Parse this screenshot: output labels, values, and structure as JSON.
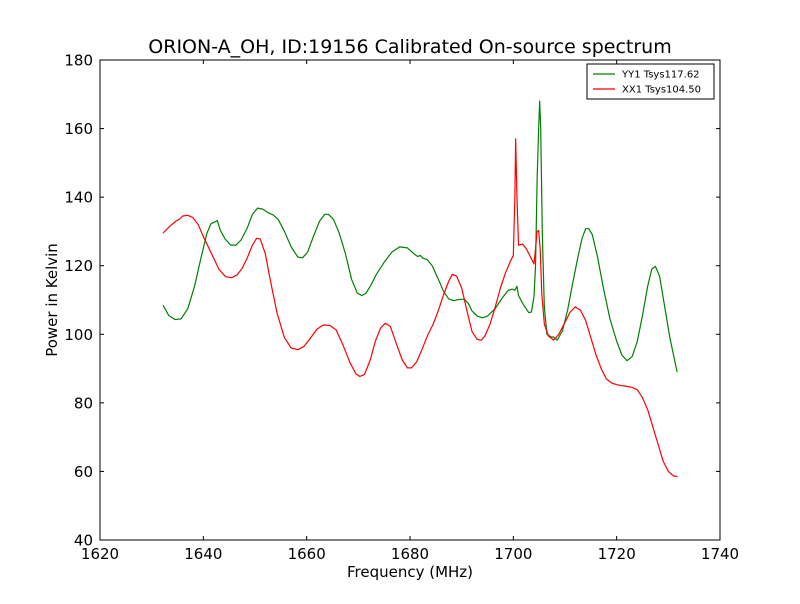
{
  "chart_data": {
    "type": "line",
    "title": "ORION-A_OH, ID:19156 Calibrated On-source spectrum",
    "xlabel": "Frequency (MHz)",
    "ylabel": "Power in Kelvin",
    "xlim": [
      1620,
      1740
    ],
    "ylim": [
      40,
      180
    ],
    "xticks": [
      1620,
      1640,
      1660,
      1680,
      1700,
      1720,
      1740
    ],
    "yticks": [
      40,
      60,
      80,
      100,
      120,
      140,
      160,
      180
    ],
    "grid": false,
    "legend": "top-right",
    "series": [
      {
        "name": "YY1 Tsys117.62",
        "color": "#008000",
        "points": [
          [
            1632.2,
            108.5
          ],
          [
            1633.3,
            105.5
          ],
          [
            1634.5,
            104.3
          ],
          [
            1635.7,
            104.5
          ],
          [
            1637,
            107.5
          ],
          [
            1638.3,
            114
          ],
          [
            1639.5,
            122
          ],
          [
            1640.7,
            129.5
          ],
          [
            1641.5,
            132.3
          ],
          [
            1642.3,
            132.8
          ],
          [
            1642.7,
            133.2
          ],
          [
            1643.3,
            130.3
          ],
          [
            1644.2,
            127.8
          ],
          [
            1645.3,
            126
          ],
          [
            1646.3,
            126
          ],
          [
            1647.3,
            127.5
          ],
          [
            1648.5,
            131
          ],
          [
            1649.5,
            135
          ],
          [
            1650.5,
            136.8
          ],
          [
            1651.5,
            136.5
          ],
          [
            1652.5,
            135.5
          ],
          [
            1653.5,
            134.8
          ],
          [
            1654.5,
            133.5
          ],
          [
            1655.7,
            130
          ],
          [
            1657,
            125.5
          ],
          [
            1658.3,
            122.5
          ],
          [
            1659.2,
            122.3
          ],
          [
            1660.2,
            124
          ],
          [
            1661.3,
            128.5
          ],
          [
            1662.5,
            133
          ],
          [
            1663.5,
            135
          ],
          [
            1664.2,
            135
          ],
          [
            1665.2,
            133.5
          ],
          [
            1666.3,
            129.5
          ],
          [
            1667.5,
            123.5
          ],
          [
            1668.7,
            116
          ],
          [
            1669.8,
            112
          ],
          [
            1670.7,
            111.3
          ],
          [
            1671.5,
            112
          ],
          [
            1672.5,
            114.5
          ],
          [
            1673.5,
            117.5
          ],
          [
            1675,
            121
          ],
          [
            1676.5,
            124
          ],
          [
            1678,
            125.5
          ],
          [
            1679.5,
            125.2
          ],
          [
            1681,
            123.2
          ],
          [
            1681.5,
            122.7
          ],
          [
            1682,
            123
          ],
          [
            1682.5,
            122.2
          ],
          [
            1683.3,
            121.8
          ],
          [
            1684.3,
            120
          ],
          [
            1685.5,
            116
          ],
          [
            1686.5,
            112.5
          ],
          [
            1687.5,
            110.3
          ],
          [
            1688.5,
            109.8
          ],
          [
            1689.5,
            110.2
          ],
          [
            1690.5,
            110.2
          ],
          [
            1691.3,
            109
          ],
          [
            1692,
            106.8
          ],
          [
            1693,
            105.3
          ],
          [
            1694,
            104.8
          ],
          [
            1695,
            105.3
          ],
          [
            1696.5,
            107.5
          ],
          [
            1697.8,
            110.5
          ],
          [
            1699,
            112.8
          ],
          [
            1699.8,
            113.2
          ],
          [
            1700.3,
            112.8
          ],
          [
            1700.7,
            114
          ],
          [
            1701,
            111.3
          ],
          [
            1702,
            108.5
          ],
          [
            1703,
            106.3
          ],
          [
            1703.5,
            106.5
          ],
          [
            1704,
            111
          ],
          [
            1704.3,
            120
          ],
          [
            1704.6,
            145
          ],
          [
            1704.9,
            160
          ],
          [
            1705.1,
            168
          ],
          [
            1705.3,
            160
          ],
          [
            1705.6,
            130
          ],
          [
            1706,
            108
          ],
          [
            1706.5,
            100
          ],
          [
            1707.3,
            99.2
          ],
          [
            1707.8,
            99.2
          ],
          [
            1708.5,
            98.3
          ],
          [
            1709.5,
            101
          ],
          [
            1710.5,
            107
          ],
          [
            1711.5,
            115
          ],
          [
            1712.5,
            122.5
          ],
          [
            1713.3,
            128
          ],
          [
            1714,
            130.8
          ],
          [
            1714.6,
            130.8
          ],
          [
            1715.3,
            129
          ],
          [
            1716.3,
            122.5
          ],
          [
            1717.5,
            113
          ],
          [
            1718.7,
            104.5
          ],
          [
            1720,
            98
          ],
          [
            1721,
            94
          ],
          [
            1722,
            92.3
          ],
          [
            1723,
            93.5
          ],
          [
            1724,
            98
          ],
          [
            1725,
            105.5
          ],
          [
            1726,
            114
          ],
          [
            1726.8,
            119
          ],
          [
            1727.5,
            119.8
          ],
          [
            1728.3,
            117
          ],
          [
            1729.3,
            108
          ],
          [
            1730.3,
            99
          ],
          [
            1731,
            94
          ],
          [
            1731.7,
            89
          ]
        ]
      },
      {
        "name": "XX1 Tsys104.50",
        "color": "#ff0000",
        "points": [
          [
            1632.2,
            129.5
          ],
          [
            1633.5,
            131.5
          ],
          [
            1634.7,
            133
          ],
          [
            1635.5,
            133.7
          ],
          [
            1636,
            134.5
          ],
          [
            1637,
            134.7
          ],
          [
            1638,
            134
          ],
          [
            1639,
            132
          ],
          [
            1640,
            128.5
          ],
          [
            1641.5,
            123.8
          ],
          [
            1643,
            119
          ],
          [
            1644.3,
            116.8
          ],
          [
            1645.5,
            116.5
          ],
          [
            1646.5,
            117.3
          ],
          [
            1647.5,
            119.2
          ],
          [
            1648.5,
            122.3
          ],
          [
            1649.5,
            126
          ],
          [
            1650.3,
            128
          ],
          [
            1651,
            127.8
          ],
          [
            1652,
            123.5
          ],
          [
            1653,
            115.5
          ],
          [
            1654.3,
            106
          ],
          [
            1655.7,
            99
          ],
          [
            1657,
            96
          ],
          [
            1658.3,
            95.5
          ],
          [
            1659.5,
            96.5
          ],
          [
            1660.7,
            98.8
          ],
          [
            1662,
            101.5
          ],
          [
            1663.2,
            102.7
          ],
          [
            1664.5,
            102.6
          ],
          [
            1665.7,
            101.3
          ],
          [
            1667,
            97
          ],
          [
            1668.3,
            92
          ],
          [
            1669.5,
            88.5
          ],
          [
            1670.3,
            87.7
          ],
          [
            1671.2,
            88.3
          ],
          [
            1672.3,
            92.5
          ],
          [
            1673.3,
            98
          ],
          [
            1674.3,
            101.8
          ],
          [
            1675.2,
            103.2
          ],
          [
            1676.2,
            102.3
          ],
          [
            1677.3,
            97.5
          ],
          [
            1678.5,
            92.5
          ],
          [
            1679.5,
            90.2
          ],
          [
            1680.3,
            90.2
          ],
          [
            1681.3,
            92
          ],
          [
            1682.3,
            95.5
          ],
          [
            1683.5,
            100
          ],
          [
            1684.5,
            103
          ],
          [
            1685.5,
            107
          ],
          [
            1686.5,
            111.5
          ],
          [
            1687.5,
            115.5
          ],
          [
            1688.2,
            117.5
          ],
          [
            1689,
            117
          ],
          [
            1690,
            113.5
          ],
          [
            1691,
            107
          ],
          [
            1692,
            100.8
          ],
          [
            1693,
            98.5
          ],
          [
            1693.8,
            98.3
          ],
          [
            1694.5,
            99.5
          ],
          [
            1695.5,
            103
          ],
          [
            1696.5,
            108
          ],
          [
            1697.5,
            113.5
          ],
          [
            1698.5,
            118
          ],
          [
            1699.5,
            121.5
          ],
          [
            1700,
            123
          ],
          [
            1700.3,
            140
          ],
          [
            1700.45,
            157
          ],
          [
            1700.7,
            140
          ],
          [
            1701,
            126
          ],
          [
            1701.8,
            126.3
          ],
          [
            1702.5,
            125
          ],
          [
            1703.5,
            122
          ],
          [
            1704,
            120.5
          ],
          [
            1704.3,
            125
          ],
          [
            1704.6,
            130
          ],
          [
            1704.9,
            130.3
          ],
          [
            1705.2,
            125
          ],
          [
            1705.5,
            112
          ],
          [
            1706,
            103
          ],
          [
            1706.8,
            99.5
          ],
          [
            1707.8,
            98.3
          ],
          [
            1708.8,
            100
          ],
          [
            1710,
            103.5
          ],
          [
            1711,
            106.5
          ],
          [
            1712,
            108
          ],
          [
            1713,
            107
          ],
          [
            1714,
            104
          ],
          [
            1715,
            99
          ],
          [
            1716,
            94
          ],
          [
            1717,
            90
          ],
          [
            1718,
            87
          ],
          [
            1719,
            85.8
          ],
          [
            1720,
            85.3
          ],
          [
            1721,
            85
          ],
          [
            1722,
            84.8
          ],
          [
            1723,
            84.5
          ],
          [
            1724,
            83.8
          ],
          [
            1725,
            81.5
          ],
          [
            1726,
            78
          ],
          [
            1727,
            73
          ],
          [
            1728,
            68
          ],
          [
            1729,
            63
          ],
          [
            1730,
            60
          ],
          [
            1731,
            58.7
          ],
          [
            1731.8,
            58.5
          ]
        ]
      }
    ]
  }
}
